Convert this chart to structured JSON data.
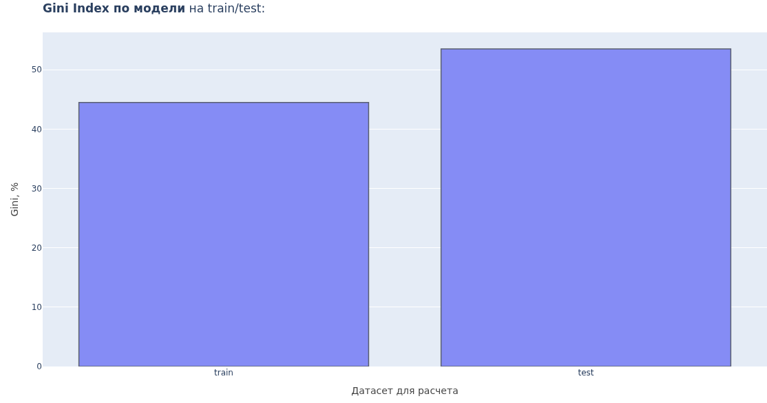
{
  "chart_data": {
    "type": "bar",
    "title": "Gini Index по модели",
    "subtitle": "на train/test:",
    "xlabel": "Датасет для расчета",
    "ylabel": "Gini, %",
    "categories": [
      "train",
      "test"
    ],
    "series": [
      {
        "color": "#858cf5",
        "values": [
          44.5,
          53.5
        ]
      }
    ],
    "ylim": [
      0,
      56.3
    ],
    "yticks": [
      0,
      10,
      20,
      30,
      40,
      50
    ],
    "grid": "y",
    "legend": false
  }
}
